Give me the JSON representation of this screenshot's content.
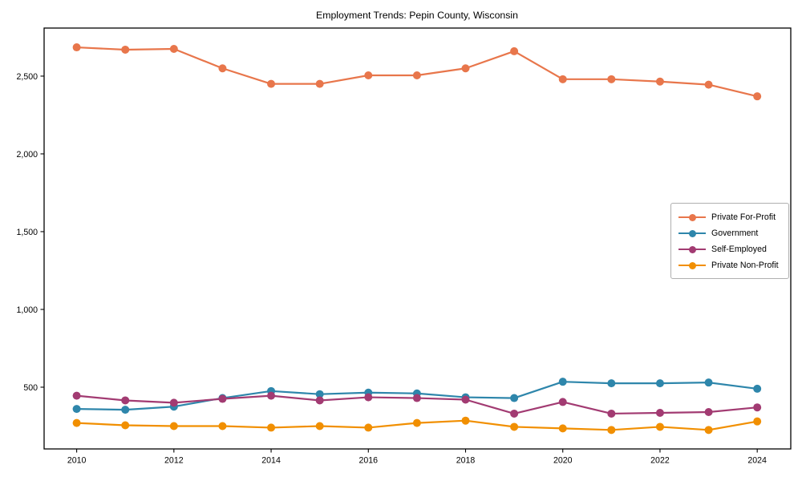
{
  "title": "Employment Trends: Pepin County, Wisconsin",
  "chart_data": {
    "type": "line",
    "title": "Employment Trends: Pepin County, Wisconsin",
    "xlabel": "",
    "ylabel": "",
    "grid": false,
    "legend_position": "center right",
    "x": [
      2010,
      2011,
      2012,
      2013,
      2014,
      2015,
      2016,
      2017,
      2018,
      2019,
      2020,
      2021,
      2022,
      2023,
      2024
    ],
    "x_ticks": [
      2010,
      2012,
      2014,
      2016,
      2018,
      2020,
      2022,
      2024
    ],
    "x_tick_labels": [
      "2010",
      "2012",
      "2014",
      "2016",
      "2018",
      "2020",
      "2022",
      "2024"
    ],
    "y_ticks": [
      500,
      1000,
      1500,
      2000,
      2500
    ],
    "y_tick_labels": [
      "500",
      "1,000",
      "1,500",
      "2,000",
      "2,500"
    ],
    "xlim": [
      2009.33,
      2024.69
    ],
    "ylim": [
      103,
      2809
    ],
    "series": [
      {
        "name": "Private For-Profit",
        "color": "#E8764B",
        "values": [
          2685,
          2670,
          2675,
          2550,
          2450,
          2450,
          2505,
          2505,
          2550,
          2660,
          2480,
          2480,
          2465,
          2445,
          2370
        ]
      },
      {
        "name": "Government",
        "color": "#2E86AB",
        "values": [
          360,
          355,
          375,
          430,
          475,
          455,
          465,
          460,
          435,
          430,
          535,
          525,
          525,
          530,
          490
        ]
      },
      {
        "name": "Self-Employed",
        "color": "#A23B72",
        "values": [
          445,
          415,
          400,
          425,
          445,
          415,
          435,
          430,
          420,
          330,
          405,
          330,
          335,
          340,
          370
        ]
      },
      {
        "name": "Private Non-Profit",
        "color": "#F18F01",
        "values": [
          270,
          255,
          250,
          250,
          240,
          250,
          240,
          270,
          285,
          245,
          235,
          225,
          245,
          225,
          280
        ]
      }
    ]
  }
}
